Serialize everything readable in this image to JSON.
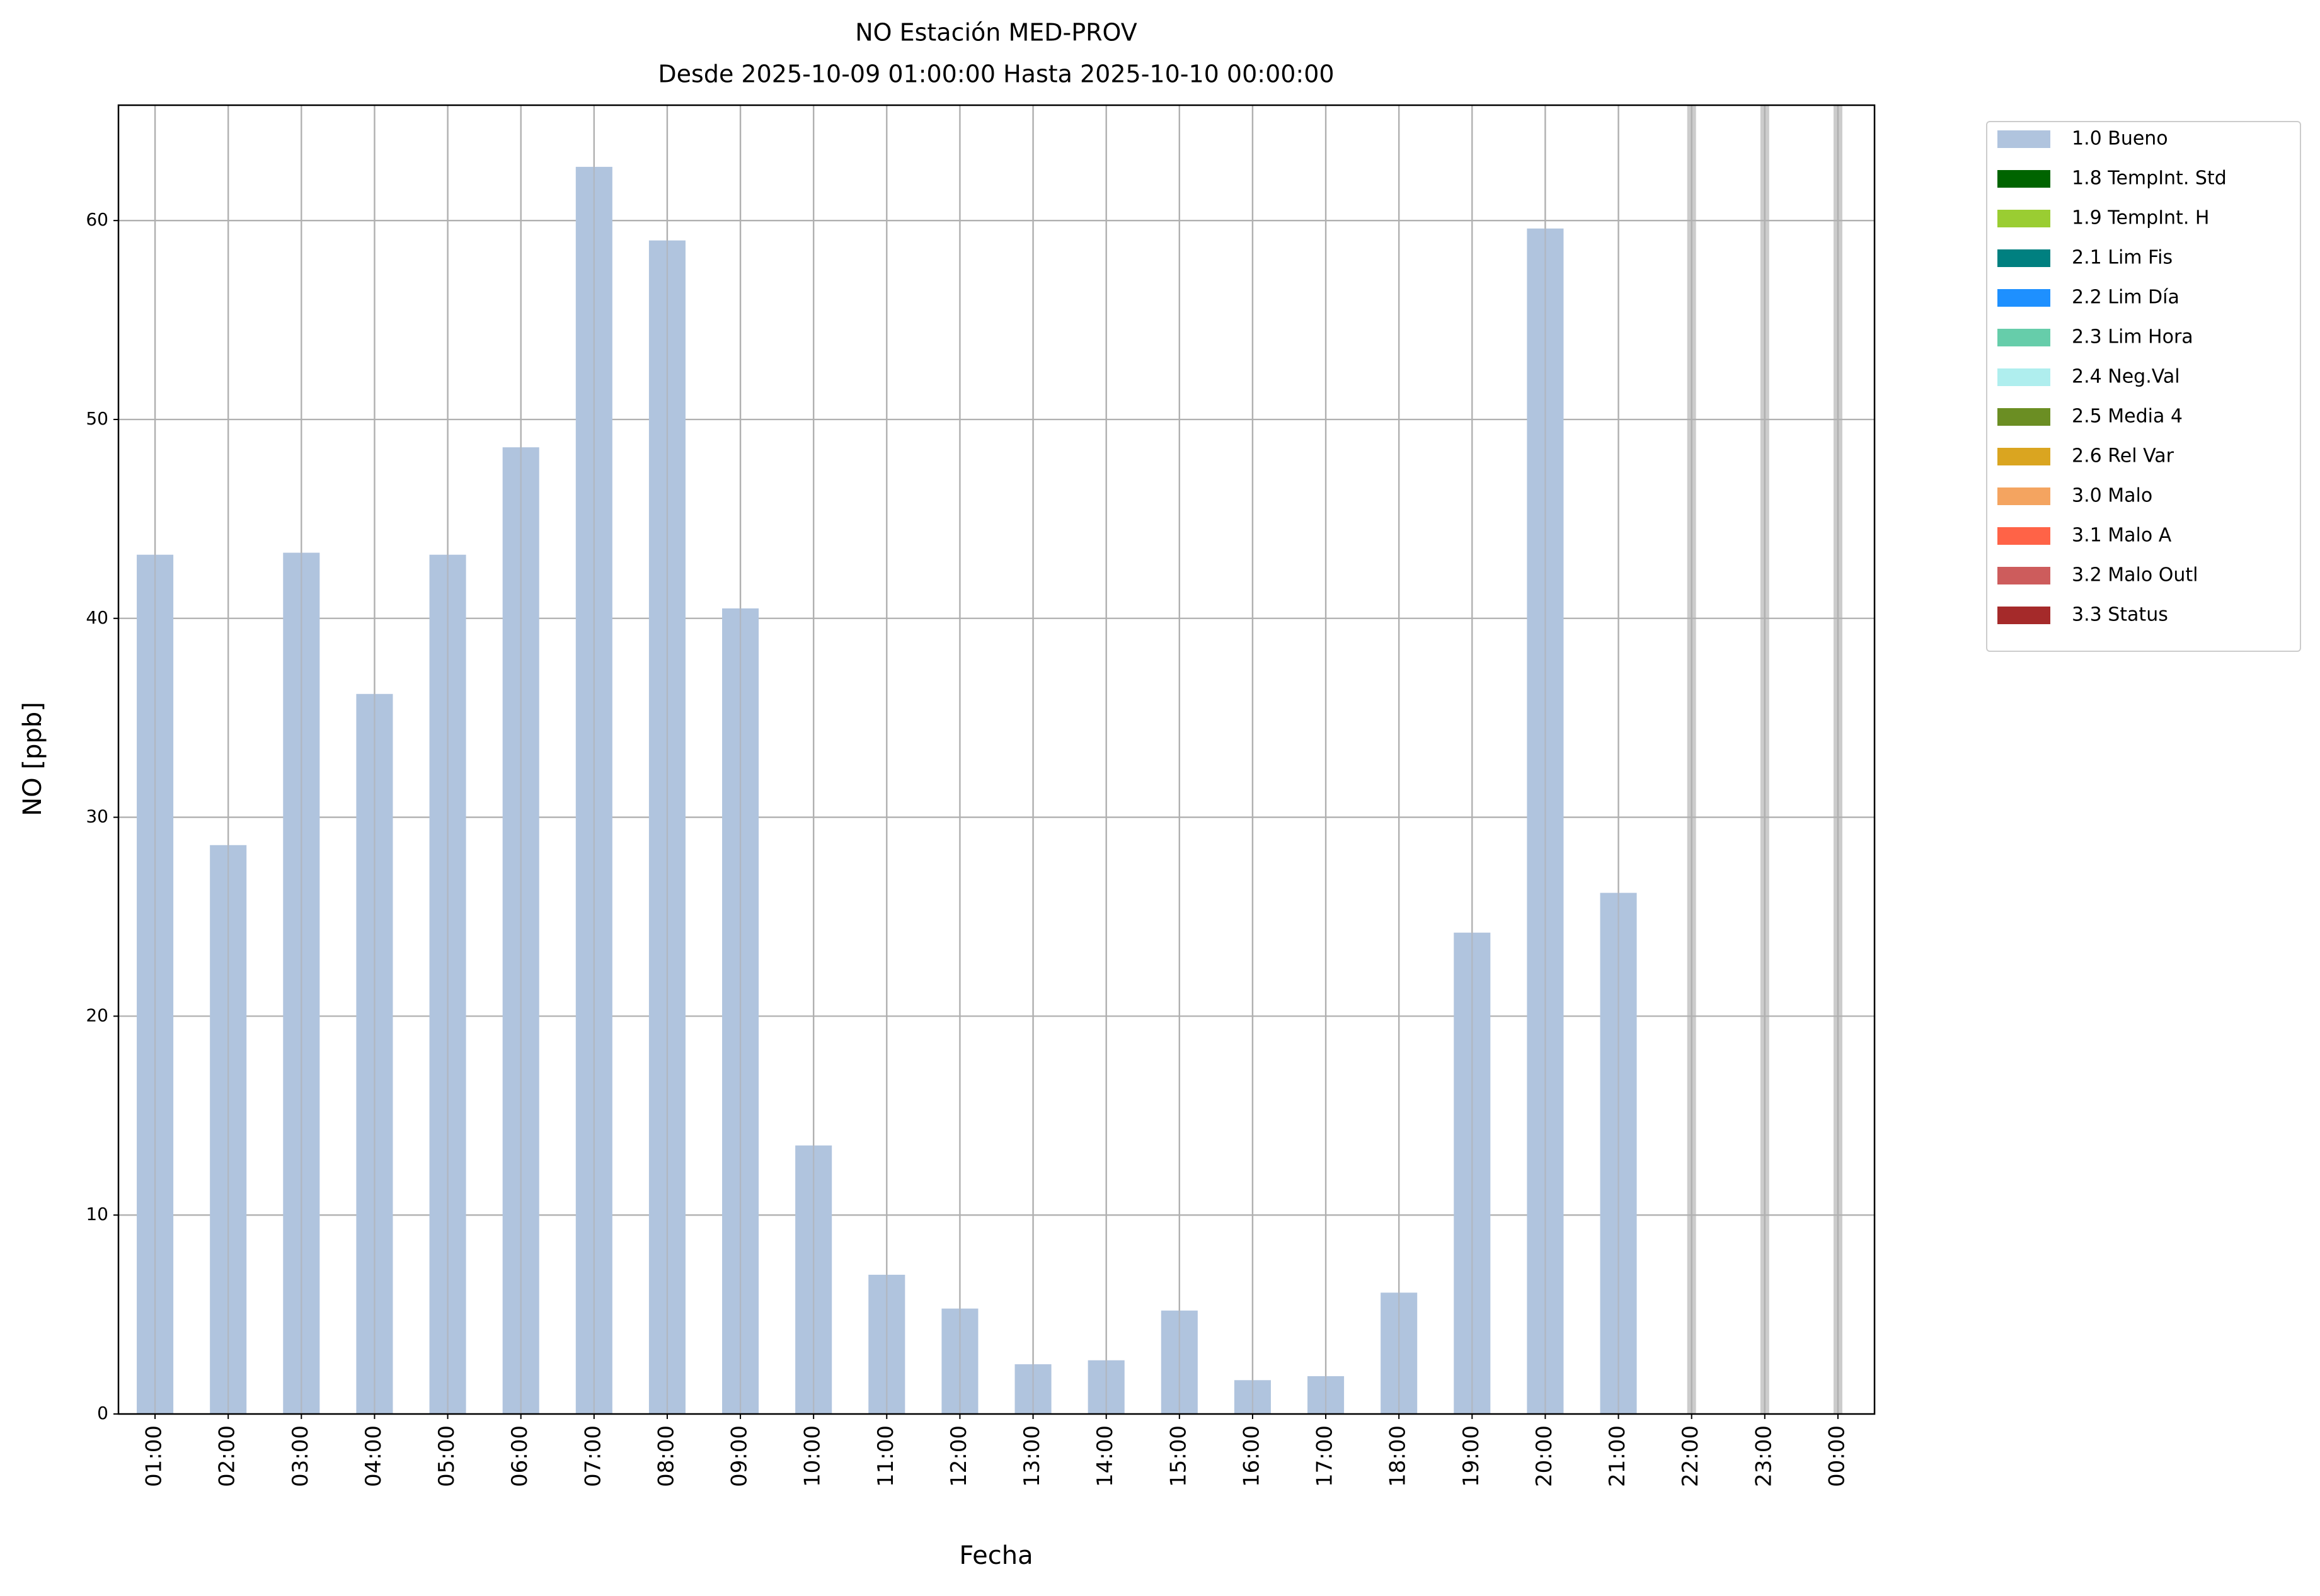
{
  "chart_data": {
    "type": "bar",
    "title": "NO Estación MED-PROV",
    "subtitle": "Desde 2025-10-09 01:00:00 Hasta 2025-10-10 00:00:00",
    "x_label": "Fecha",
    "y_label": "NO [ppb]",
    "categories": [
      "01:00",
      "02:00",
      "03:00",
      "04:00",
      "05:00",
      "06:00",
      "07:00",
      "08:00",
      "09:00",
      "10:00",
      "11:00",
      "12:00",
      "13:00",
      "14:00",
      "15:00",
      "16:00",
      "17:00",
      "18:00",
      "19:00",
      "20:00",
      "21:00",
      "22:00",
      "23:00",
      "00:00"
    ],
    "series": [
      {
        "name": "1.0 Bueno",
        "color": "#b0c4de",
        "values": [
          43.2,
          28.6,
          43.3,
          36.2,
          43.2,
          48.6,
          62.7,
          59.0,
          40.5,
          13.5,
          7.0,
          5.3,
          2.5,
          2.7,
          5.2,
          1.7,
          1.9,
          6.1,
          24.2,
          59.6,
          26.2,
          null,
          null,
          null
        ]
      },
      {
        "name": "1.8 TempInt. Std",
        "color": "#006400"
      },
      {
        "name": "1.9 TempInt. H",
        "color": "#9acd32"
      },
      {
        "name": "2.1 Lim Fis",
        "color": "#008080"
      },
      {
        "name": "2.2 Lim Día",
        "color": "#1e90ff"
      },
      {
        "name": "2.3 Lim Hora",
        "color": "#66cdaa"
      },
      {
        "name": "2.4 Neg.Val",
        "color": "#afeeee"
      },
      {
        "name": "2.5 Media 4",
        "color": "#6b8e23"
      },
      {
        "name": "2.6 Rel Var",
        "color": "#daa520"
      },
      {
        "name": "3.0 Malo",
        "color": "#f4a460"
      },
      {
        "name": "3.1 Malo A",
        "color": "#ff6347"
      },
      {
        "name": "3.2 Malo Outl",
        "color": "#cd5c5c"
      },
      {
        "name": "3.3 Status",
        "color": "#a52a2a"
      }
    ],
    "ylim": [
      0,
      65.8
    ],
    "yticks": [
      0,
      10,
      20,
      30,
      40,
      50,
      60
    ],
    "grid": true,
    "legend": "outside-upper-right"
  }
}
